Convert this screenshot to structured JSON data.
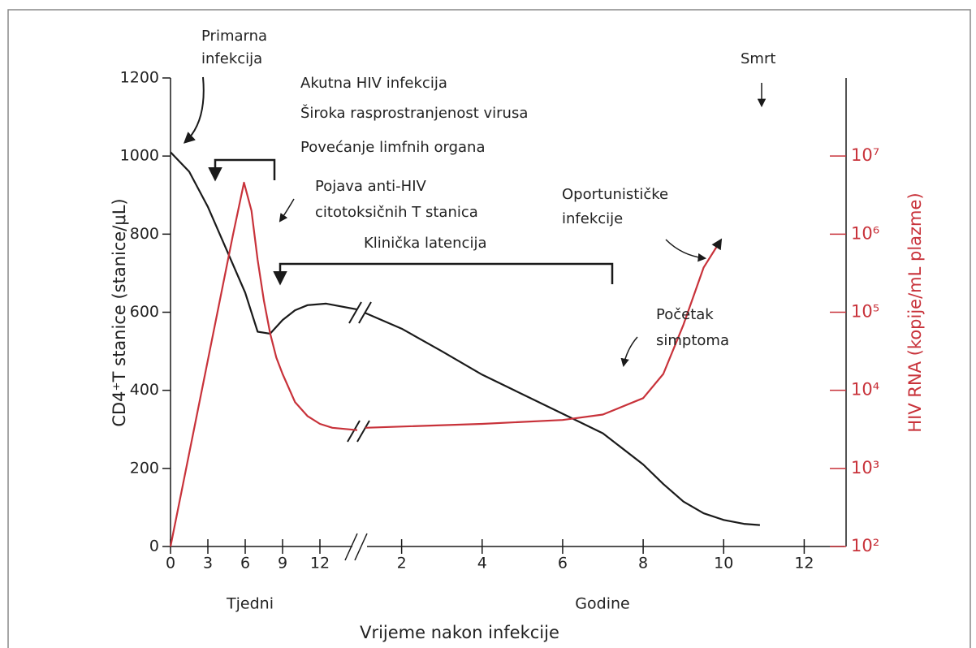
{
  "chart_data": {
    "type": "line",
    "ylabel": "CD4⁺T stanice (stanice/μL)",
    "y2label": "HIV RNA (kopije/mL plazme)",
    "xlabel": "Vrijeme nakon infekcije",
    "ylim": [
      0,
      1200
    ],
    "yticks": [
      0,
      200,
      400,
      600,
      800,
      1000,
      1200
    ],
    "y2lim": [
      100,
      100000000
    ],
    "y2log": true,
    "y2ticks": [
      {
        "value": 100,
        "label": "10²"
      },
      {
        "value": 1000,
        "label": "10³"
      },
      {
        "value": 10000,
        "label": "10⁴"
      },
      {
        "value": 100000,
        "label": "10⁵"
      },
      {
        "value": 1000000,
        "label": "10⁶"
      },
      {
        "value": 10000000,
        "label": "10⁷"
      }
    ],
    "x_segments": [
      {
        "label": "Tjedni",
        "xlim": [
          0,
          15
        ],
        "xticks": [
          0,
          3,
          6,
          9,
          12
        ]
      },
      {
        "label": "Godine",
        "xlim": [
          1.1,
          13
        ],
        "xticks": [
          2,
          4,
          6,
          8,
          10,
          12
        ]
      }
    ],
    "series": [
      {
        "color": "#1a1a1a",
        "axis": "y",
        "segment": 0,
        "x": [
          0,
          1.5,
          3,
          4.5,
          6,
          7,
          8,
          9,
          10,
          11,
          12.5,
          15
        ],
        "values": [
          1010,
          960,
          870,
          760,
          650,
          550,
          545,
          580,
          605,
          618,
          622,
          607
        ]
      },
      {
        "color": "#1a1a1a",
        "axis": "y",
        "segment": 1,
        "x": [
          1.1,
          2,
          3,
          4,
          5,
          6,
          7,
          8,
          8.5,
          9,
          9.5,
          10,
          10.5,
          10.9
        ],
        "values": [
          598,
          558,
          500,
          440,
          390,
          340,
          290,
          210,
          160,
          115,
          85,
          68,
          58,
          55
        ]
      },
      {
        "color": "#c8323a",
        "axis": "y2",
        "segment": 0,
        "x": [
          0,
          5,
          5.9,
          6.5,
          7,
          7.5,
          8,
          8.5,
          9,
          10,
          11,
          12,
          13,
          15
        ],
        "values": [
          100,
          955000,
          4570000,
          2000000,
          468000,
          141000,
          53700,
          26300,
          16200,
          7080,
          4680,
          3720,
          3310,
          3090
        ]
      },
      {
        "color": "#c8323a",
        "axis": "y2",
        "segment": 1,
        "x": [
          1.1,
          4,
          6,
          7,
          8,
          8.5,
          9,
          9.5,
          9.9
        ],
        "values": [
          3310,
          3720,
          4170,
          4900,
          7940,
          16200,
          69200,
          372000,
          794000
        ]
      }
    ],
    "annotations": [
      "Primarna",
      "infekcija",
      "Smrt",
      "Akutna HIV infekcija",
      "Široka rasprostranjenost virusa",
      "Povećanje limfnih organa",
      "Pojava anti-HIV",
      "citotoksičnih T stanica",
      "Klinička latencija",
      "Oportunističke",
      "infekcije",
      "Početak",
      "simptoma"
    ]
  }
}
